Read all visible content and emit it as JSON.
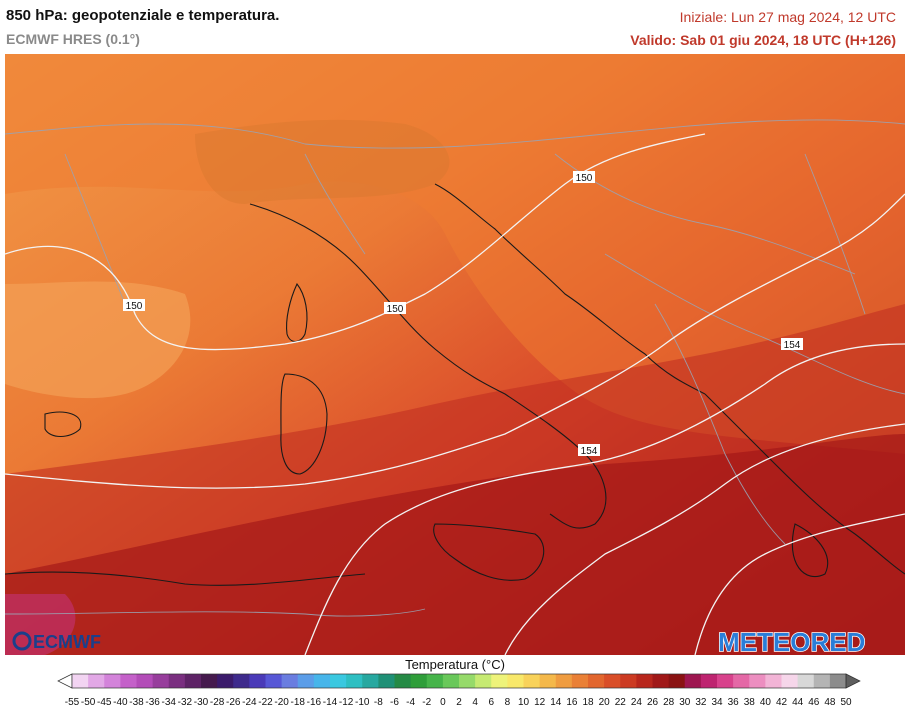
{
  "header": {
    "title": "850 hPa: geopotenziale e temperatura.",
    "model": "ECMWF HRES (0.1°)",
    "init_time": "Iniziale: Lun 27 mag 2024, 12 UTC",
    "valid_time": "Valido: Sab 01 giu 2024, 18 UTC (H+126)"
  },
  "map": {
    "contour_labels": [
      "150",
      "150",
      "150",
      "154",
      "154"
    ],
    "logo_left": "ECMWF",
    "logo_right": "METEORED"
  },
  "legend": {
    "title": "Temperatura (°C)",
    "ticks": [
      "-55",
      "-50",
      "-45",
      "-40",
      "-38",
      "-36",
      "-34",
      "-32",
      "-30",
      "-28",
      "-26",
      "-24",
      "-22",
      "-20",
      "-18",
      "-16",
      "-14",
      "-12",
      "-10",
      "-8",
      "-6",
      "-4",
      "-2",
      "0",
      "2",
      "4",
      "6",
      "8",
      "10",
      "12",
      "14",
      "16",
      "18",
      "20",
      "22",
      "24",
      "26",
      "28",
      "30",
      "32",
      "34",
      "36",
      "38",
      "40",
      "42",
      "44",
      "46",
      "48",
      "50"
    ],
    "colors": [
      "#ffffff",
      "#f2d4f2",
      "#e2a8e6",
      "#d383da",
      "#c460c9",
      "#b34cb8",
      "#973d9c",
      "#7a2f80",
      "#5e2366",
      "#451a4d",
      "#3b1b6b",
      "#3e2a8c",
      "#4a3ab8",
      "#5757d6",
      "#6a7de0",
      "#5b9de8",
      "#47b5ea",
      "#3ac8e0",
      "#2ebfc2",
      "#27a8a0",
      "#1f9076",
      "#258a45",
      "#2f9e3a",
      "#46b44a",
      "#69c85a",
      "#96da6a",
      "#c6ea72",
      "#eef37a",
      "#f8e86a",
      "#f8d25a",
      "#f4b84a",
      "#ef9c40",
      "#ea8036",
      "#e2662e",
      "#d94e28",
      "#cc3a22",
      "#b8261c",
      "#a01818",
      "#8a1212",
      "#9e1650",
      "#be2470",
      "#d8428c",
      "#e468a6",
      "#ec8ec0",
      "#f2b4d6",
      "#f6d6ea",
      "#d8d8d8",
      "#b4b4b4",
      "#8c8c8c",
      "#5e5e5e"
    ]
  }
}
